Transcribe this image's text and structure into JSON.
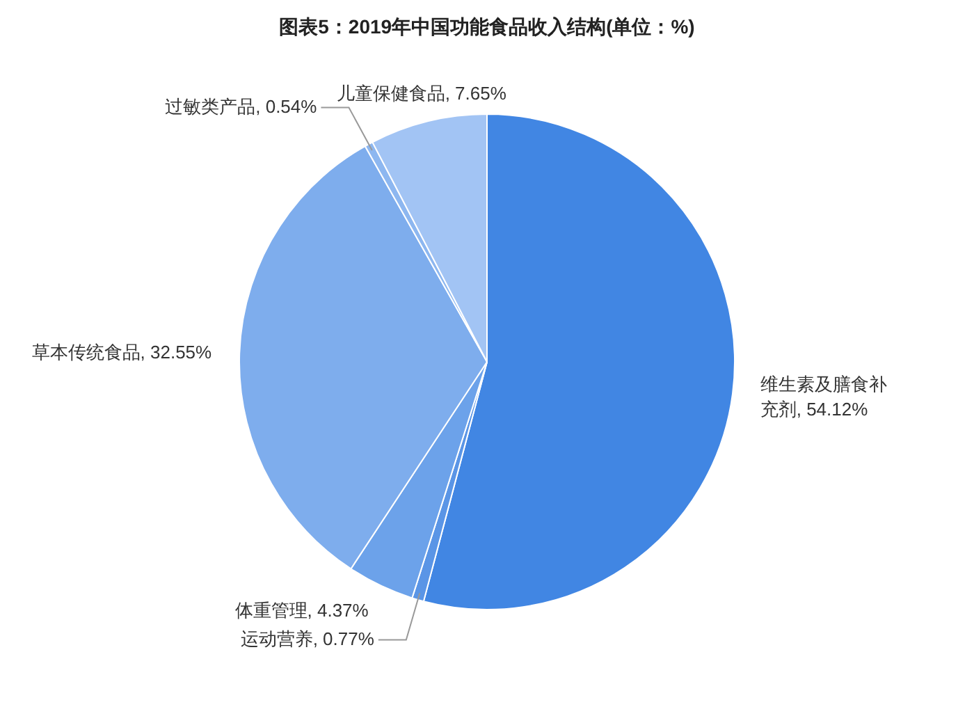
{
  "chart_data": {
    "type": "pie",
    "title": "图表5：2019年中国功能食品收入结构(单位：%)",
    "categories": [
      "维生素及膳食补充剂",
      "运动营养",
      "体重管理",
      "草本传统食品",
      "过敏类产品",
      "儿童保健食品"
    ],
    "values": [
      54.12,
      0.77,
      4.37,
      32.55,
      0.54,
      7.65
    ],
    "value_labels": [
      "54.12%",
      "0.77%",
      "4.37%",
      "32.55%",
      "0.54%",
      "7.65%"
    ],
    "colors": [
      "#4186e3",
      "#5a95e6",
      "#6ca2ea",
      "#7eaded",
      "#8db7f0",
      "#a2c4f4"
    ]
  }
}
